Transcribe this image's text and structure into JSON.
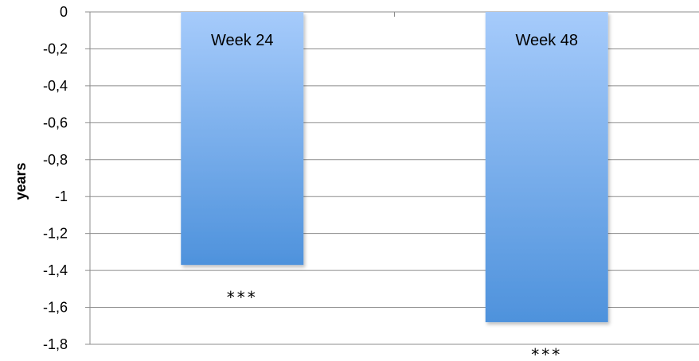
{
  "chart_data": {
    "type": "bar",
    "categories": [
      "Week 24",
      "Week 48"
    ],
    "values": [
      -1.37,
      -1.68
    ],
    "annotations": [
      "***",
      "***"
    ],
    "ylabel": "years",
    "ylim": [
      -1.8,
      0
    ],
    "yticks": [
      "0",
      "-0,2",
      "-0,4",
      "-0,6",
      "-0,8",
      "-1",
      "-1,2",
      "-1,4",
      "-1,6",
      "-1,8"
    ],
    "grid": true,
    "bar_color_top": "#a6cbfb",
    "bar_color_bottom": "#4e92dc"
  }
}
